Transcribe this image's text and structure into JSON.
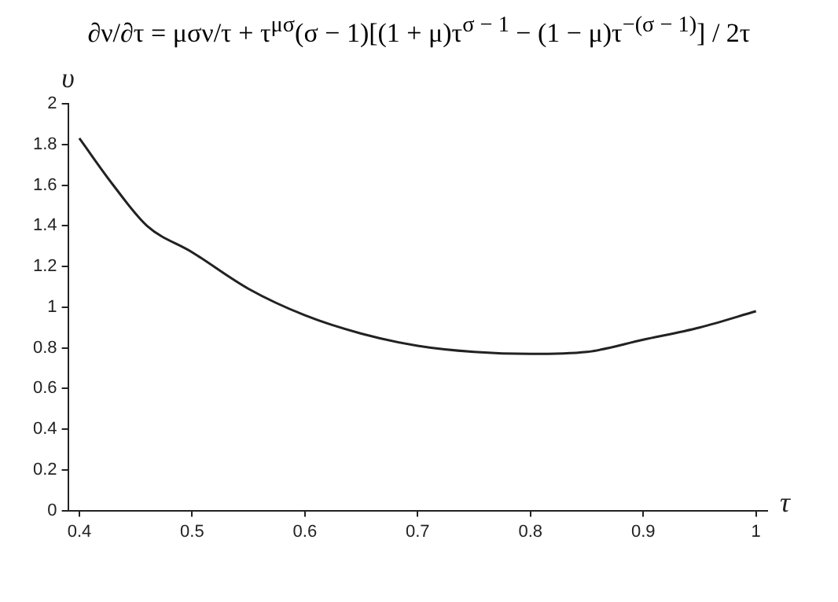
{
  "chart_data": {
    "type": "line",
    "title": "∂ν/∂τ = μσν/τ + τ$^{μσ}$(σ − 1)[(1 + μ)τ$^{σ − 1}$ − (1 − μ)τ$^{−(σ − 1)}$] / 2τ",
    "xlabel": "τ",
    "ylabel": "υ",
    "x": [
      0.4,
      0.43,
      0.46,
      0.5,
      0.55,
      0.6,
      0.65,
      0.7,
      0.75,
      0.8,
      0.85,
      0.9,
      0.95,
      1.0
    ],
    "series": [
      {
        "color": "#222222",
        "values": [
          1.83,
          1.6,
          1.4,
          1.27,
          1.09,
          0.96,
          0.87,
          0.81,
          0.78,
          0.77,
          0.78,
          0.84,
          0.9,
          0.98
        ]
      }
    ],
    "xlim": [
      0.39,
      1.01
    ],
    "xticks": [
      0.4,
      0.5,
      0.6,
      0.7,
      0.8,
      0.9,
      1
    ],
    "ylim": [
      0,
      2
    ],
    "yticks": [
      0,
      0.2,
      0.4,
      0.6,
      0.8,
      1,
      1.2,
      1.4,
      1.6,
      1.8,
      2
    ],
    "grid": false,
    "legend": false,
    "marker": "none",
    "line_style": "solid"
  }
}
